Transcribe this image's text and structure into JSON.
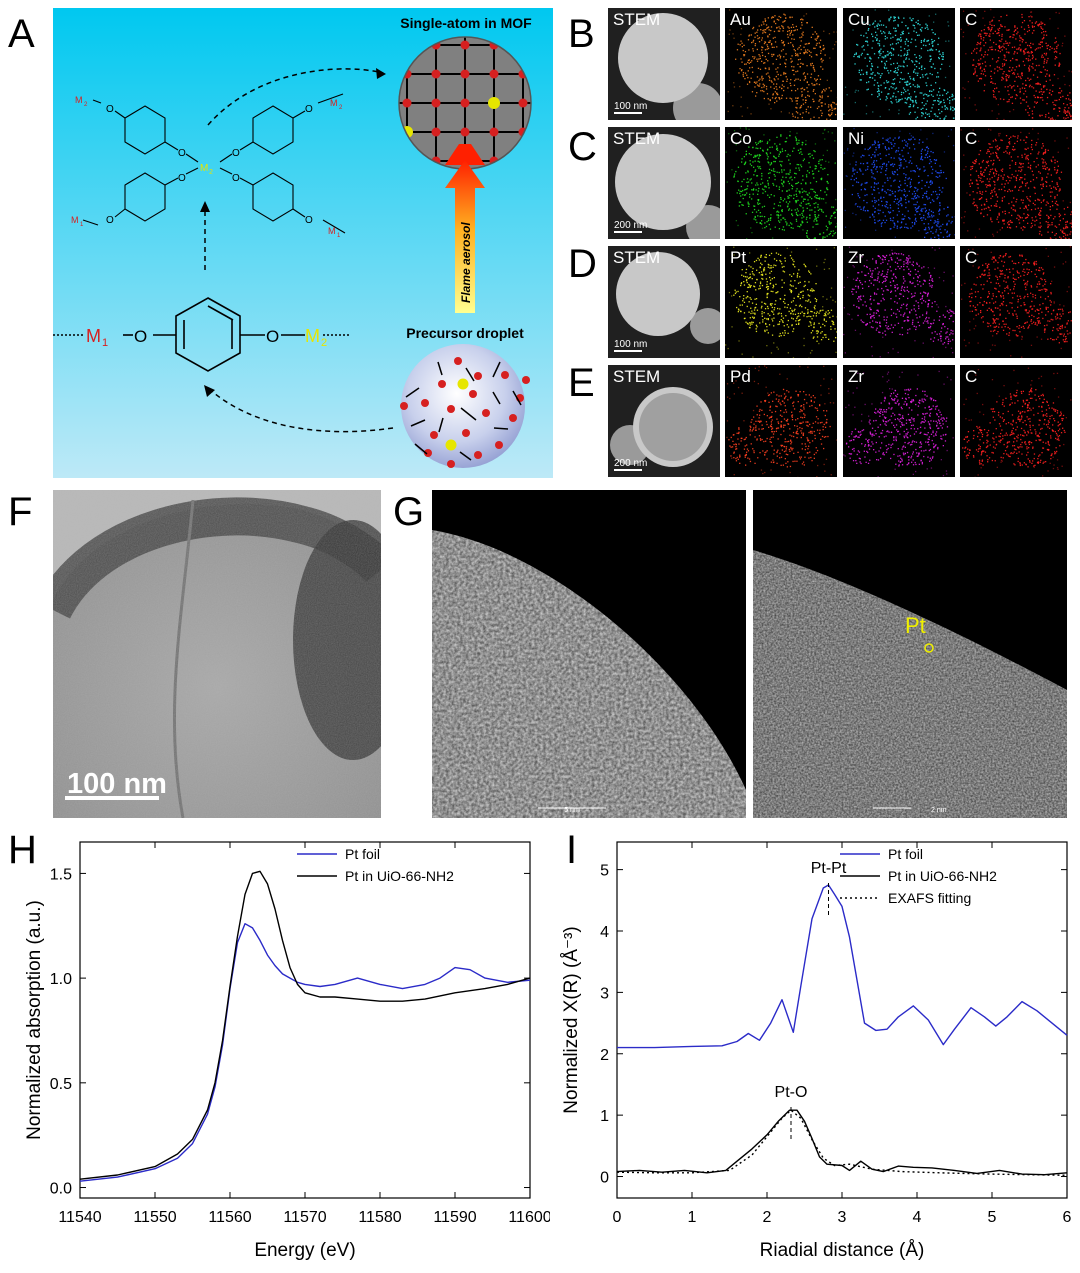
{
  "panel_letters": [
    "A",
    "B",
    "C",
    "D",
    "E",
    "F",
    "G",
    "H",
    "I"
  ],
  "schematic": {
    "mof_title": "Single-atom in MOF",
    "droplet_title": "Precursor droplet",
    "flame_label": "Flame aerosol",
    "linker_left": "M",
    "linker_left_sub": "1",
    "linker_right": "M",
    "linker_right_sub": "2",
    "oxygen": "O",
    "center_metal": "M",
    "center_metal_sub": "2",
    "colors": {
      "background_top": "#00c8f0",
      "background_bottom": "#bde9f7",
      "m1": "#d62020",
      "m2": "#e6e600",
      "arrow_top": "#ff3000",
      "arrow_bottom": "#ffff80"
    }
  },
  "eds_rows": [
    {
      "tiles": [
        {
          "label": "STEM",
          "type": "stem",
          "color": "#c8c8c8"
        },
        {
          "label": "Au",
          "type": "dots",
          "color": "#f08020"
        },
        {
          "label": "Cu",
          "type": "dots",
          "color": "#30e0e0"
        },
        {
          "label": "C",
          "type": "dots",
          "color": "#ff2020"
        }
      ],
      "scale": "100 nm"
    },
    {
      "tiles": [
        {
          "label": "STEM",
          "type": "stem",
          "color": "#c8c8c8"
        },
        {
          "label": "Co",
          "type": "dots",
          "color": "#20e020"
        },
        {
          "label": "Ni",
          "type": "dots",
          "color": "#2050ff"
        },
        {
          "label": "C",
          "type": "dots",
          "color": "#ff2020"
        }
      ],
      "scale": "200 nm"
    },
    {
      "tiles": [
        {
          "label": "STEM",
          "type": "stem",
          "color": "#c8c8c8"
        },
        {
          "label": "Pt",
          "type": "dots",
          "color": "#f0f020"
        },
        {
          "label": "Zr",
          "type": "dots",
          "color": "#e020e0"
        },
        {
          "label": "C",
          "type": "dots",
          "color": "#ff2020"
        }
      ],
      "scale": "100 nm"
    },
    {
      "tiles": [
        {
          "label": "STEM",
          "type": "stem",
          "color": "#c8c8c8"
        },
        {
          "label": "Pd",
          "type": "dots",
          "color": "#ff4020"
        },
        {
          "label": "Zr",
          "type": "dots",
          "color": "#e020e0"
        },
        {
          "label": "C",
          "type": "dots",
          "color": "#ff2020"
        }
      ],
      "scale": "200 nm"
    }
  ],
  "tem": {
    "scale": "100 nm"
  },
  "haadf": {
    "left_scale": "5 nm",
    "right_scale": "2 nm",
    "pt_label": "Pt",
    "pt_color": "#f0f000"
  },
  "chart_data": [
    {
      "type": "line",
      "panel": "H",
      "xlabel": "Energy (eV)",
      "ylabel": "Normalized absorption (a.u.)",
      "xlim": [
        11540,
        11600
      ],
      "ylim": [
        -0.05,
        1.65
      ],
      "xticks": [
        11540,
        11550,
        11560,
        11570,
        11580,
        11590,
        11600
      ],
      "yticks": [
        0.0,
        0.5,
        1.0,
        1.5
      ],
      "legend_position": "top-right",
      "series": [
        {
          "name": "Pt foil",
          "color": "#2b2bc8",
          "x": [
            11540,
            11545,
            11550,
            11553,
            11555,
            11557,
            11558,
            11559,
            11560,
            11561,
            11562,
            11563,
            11564,
            11565,
            11566,
            11567,
            11568,
            11569,
            11570,
            11572,
            11574,
            11577,
            11580,
            11583,
            11586,
            11588,
            11590,
            11592,
            11594,
            11597,
            11600
          ],
          "y": [
            0.03,
            0.05,
            0.09,
            0.14,
            0.21,
            0.35,
            0.48,
            0.68,
            0.95,
            1.17,
            1.26,
            1.24,
            1.18,
            1.11,
            1.06,
            1.02,
            1.0,
            0.98,
            0.97,
            0.96,
            0.97,
            1.0,
            0.97,
            0.95,
            0.97,
            1.0,
            1.05,
            1.04,
            1.0,
            0.98,
            0.99
          ]
        },
        {
          "name": "Pt in UiO-66-NH2",
          "color": "#000000",
          "x": [
            11540,
            11545,
            11550,
            11553,
            11555,
            11557,
            11558,
            11559,
            11560,
            11561,
            11562,
            11563,
            11564,
            11565,
            11566,
            11567,
            11568,
            11569,
            11570,
            11572,
            11574,
            11577,
            11580,
            11583,
            11586,
            11590,
            11594,
            11597,
            11600
          ],
          "y": [
            0.04,
            0.06,
            0.1,
            0.16,
            0.23,
            0.37,
            0.5,
            0.7,
            0.96,
            1.2,
            1.4,
            1.5,
            1.51,
            1.45,
            1.33,
            1.18,
            1.05,
            0.97,
            0.93,
            0.91,
            0.91,
            0.9,
            0.89,
            0.89,
            0.9,
            0.93,
            0.95,
            0.97,
            1.0
          ]
        }
      ]
    },
    {
      "type": "line",
      "panel": "I",
      "xlabel": "Riadial distance (Å)",
      "ylabel": "Normalized X(R) (Å⁻³)",
      "xlim": [
        0,
        6
      ],
      "ylim": [
        -0.35,
        5.45
      ],
      "xticks": [
        0,
        1,
        2,
        3,
        4,
        5,
        6
      ],
      "yticks": [
        0,
        1,
        2,
        3,
        4,
        5
      ],
      "legend_position": "top-right",
      "annotations": [
        {
          "text": "Pt-Pt",
          "x": 2.82,
          "y": 4.75
        },
        {
          "text": "Pt-O",
          "x": 2.32,
          "y": 1.1
        }
      ],
      "series": [
        {
          "name": "Pt foil",
          "color": "#2b2bc8",
          "style": "solid",
          "x": [
            0,
            0.5,
            1.0,
            1.4,
            1.6,
            1.75,
            1.9,
            2.05,
            2.2,
            2.35,
            2.45,
            2.6,
            2.75,
            2.82,
            2.9,
            3.0,
            3.1,
            3.2,
            3.3,
            3.45,
            3.6,
            3.75,
            3.95,
            4.15,
            4.35,
            4.5,
            4.72,
            4.9,
            5.05,
            5.2,
            5.4,
            5.6,
            5.8,
            6.0
          ],
          "y": [
            2.1,
            2.1,
            2.12,
            2.13,
            2.2,
            2.33,
            2.22,
            2.5,
            2.88,
            2.35,
            3.1,
            4.2,
            4.7,
            4.75,
            4.6,
            4.4,
            3.9,
            3.2,
            2.5,
            2.38,
            2.4,
            2.6,
            2.78,
            2.55,
            2.15,
            2.4,
            2.75,
            2.6,
            2.45,
            2.6,
            2.85,
            2.7,
            2.5,
            2.3
          ]
        },
        {
          "name": "Pt in UiO-66-NH2",
          "color": "#000000",
          "style": "solid",
          "x": [
            0,
            0.3,
            0.6,
            0.9,
            1.2,
            1.45,
            1.6,
            1.8,
            2.0,
            2.15,
            2.3,
            2.4,
            2.5,
            2.6,
            2.7,
            2.8,
            3.0,
            3.1,
            3.25,
            3.4,
            3.55,
            3.75,
            3.95,
            4.2,
            4.5,
            4.8,
            5.1,
            5.4,
            5.7,
            6.0
          ],
          "y": [
            0.08,
            0.1,
            0.07,
            0.1,
            0.06,
            0.1,
            0.25,
            0.45,
            0.68,
            0.9,
            1.08,
            1.08,
            0.9,
            0.62,
            0.32,
            0.2,
            0.18,
            0.1,
            0.25,
            0.12,
            0.08,
            0.17,
            0.15,
            0.14,
            0.1,
            0.05,
            0.1,
            0.04,
            0.03,
            0.06
          ]
        },
        {
          "name": "EXAFS fitting",
          "color": "#000000",
          "style": "dotted",
          "x": [
            0,
            0.5,
            1.0,
            1.5,
            1.8,
            2.0,
            2.2,
            2.32,
            2.45,
            2.6,
            2.75,
            2.9,
            3.1,
            3.4,
            3.8,
            4.3,
            5.0,
            5.5,
            6.0
          ],
          "y": [
            0.07,
            0.06,
            0.06,
            0.1,
            0.35,
            0.65,
            0.95,
            1.08,
            0.95,
            0.6,
            0.3,
            0.18,
            0.2,
            0.12,
            0.08,
            0.06,
            0.04,
            0.03,
            0.02
          ]
        }
      ]
    }
  ]
}
